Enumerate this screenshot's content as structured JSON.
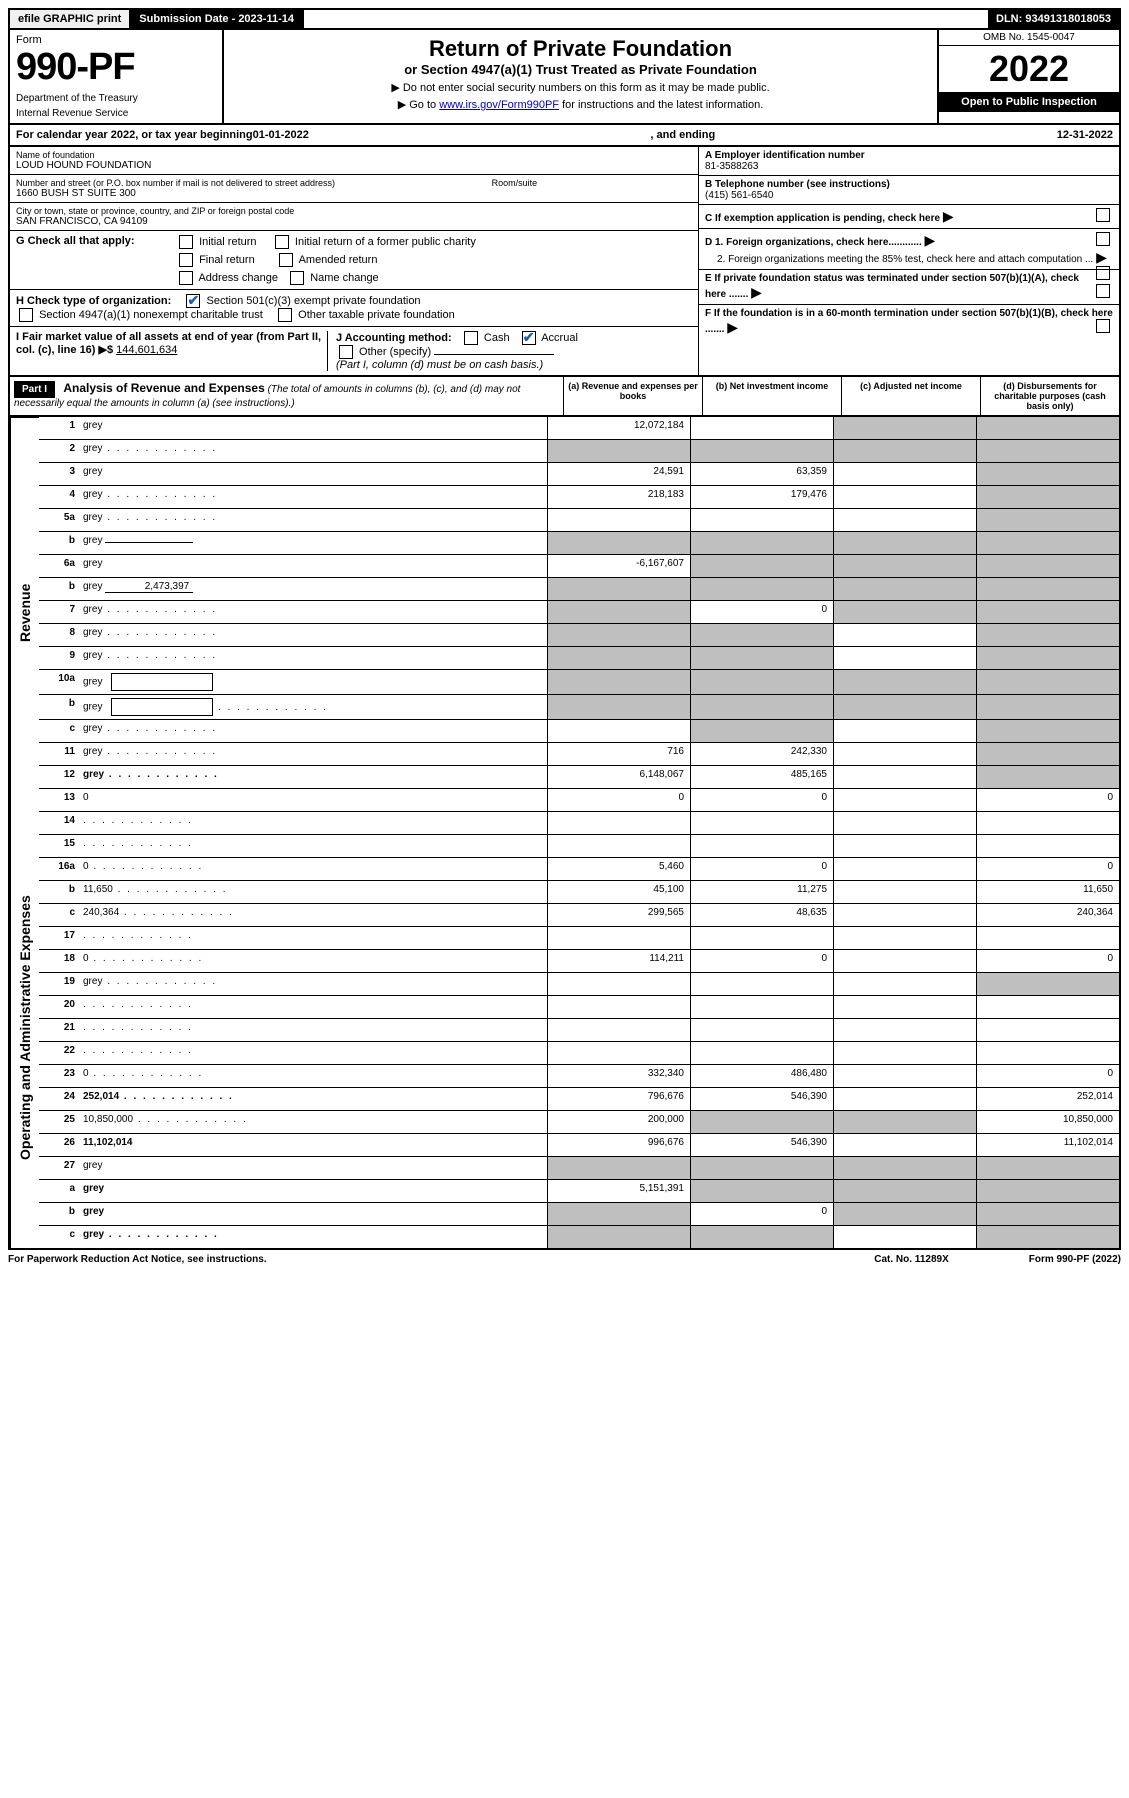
{
  "topbar": {
    "efile": "efile GRAPHIC print",
    "submission": "Submission Date - 2023-11-14",
    "dln": "DLN: 93491318018053"
  },
  "header": {
    "form_word": "Form",
    "form_num": "990-PF",
    "dept": "Department of the Treasury",
    "irs": "Internal Revenue Service",
    "title": "Return of Private Foundation",
    "subtitle": "or Section 4947(a)(1) Trust Treated as Private Foundation",
    "instr1": "▶ Do not enter social security numbers on this form as it may be made public.",
    "instr2_pre": "▶ Go to ",
    "instr2_link": "www.irs.gov/Form990PF",
    "instr2_post": " for instructions and the latest information.",
    "omb": "OMB No. 1545-0047",
    "year": "2022",
    "open": "Open to Public Inspection"
  },
  "calyear": {
    "pre": "For calendar year 2022, or tax year beginning ",
    "begin": "01-01-2022",
    "mid": ", and ending ",
    "end": "12-31-2022"
  },
  "entity": {
    "name_label": "Name of foundation",
    "name": "LOUD HOUND FOUNDATION",
    "addr_label": "Number and street (or P.O. box number if mail is not delivered to street address)",
    "addr": "1660 BUSH ST SUITE 300",
    "room_label": "Room/suite",
    "city_label": "City or town, state or province, country, and ZIP or foreign postal code",
    "city": "SAN FRANCISCO, CA  94109",
    "ein_label": "A Employer identification number",
    "ein": "81-3588263",
    "phone_label": "B Telephone number (see instructions)",
    "phone": "(415) 561-6540",
    "c_label": "C If exemption application is pending, check here",
    "d1": "D 1. Foreign organizations, check here............",
    "d2": "2. Foreign organizations meeting the 85% test, check here and attach computation ...",
    "e_label": "E If private foundation status was terminated under section 507(b)(1)(A), check here .......",
    "f_label": "F If the foundation is in a 60-month termination under section 507(b)(1)(B), check here .......",
    "g_label": "G Check all that apply:",
    "g_opts": [
      "Initial return",
      "Initial return of a former public charity",
      "Final return",
      "Amended return",
      "Address change",
      "Name change"
    ],
    "h_label": "H Check type of organization:",
    "h1": "Section 501(c)(3) exempt private foundation",
    "h2": "Section 4947(a)(1) nonexempt charitable trust",
    "h3": "Other taxable private foundation",
    "i_label": "I Fair market value of all assets at end of year (from Part II, col. (c), line 16) ▶$",
    "i_value": "144,601,634",
    "j_label": "J Accounting method:",
    "j_cash": "Cash",
    "j_accrual": "Accrual",
    "j_other": "Other (specify)",
    "j_note": "(Part I, column (d) must be on cash basis.)"
  },
  "part1": {
    "label": "Part I",
    "title": "Analysis of Revenue and Expenses",
    "title_note": "(The total of amounts in columns (b), (c), and (d) may not necessarily equal the amounts in column (a) (see instructions).)",
    "col_a": "(a) Revenue and expenses per books",
    "col_b": "(b) Net investment income",
    "col_c": "(c) Adjusted net income",
    "col_d": "(d) Disbursements for charitable purposes (cash basis only)"
  },
  "sides": {
    "revenue": "Revenue",
    "expenses": "Operating and Administrative Expenses"
  },
  "lines": [
    {
      "n": "1",
      "d": "grey",
      "a": "12,072,184",
      "b": "",
      "c": "grey"
    },
    {
      "n": "2",
      "d": "grey",
      "a": "grey",
      "b": "grey",
      "c": "grey",
      "dots": true
    },
    {
      "n": "3",
      "d": "grey",
      "a": "24,591",
      "b": "63,359",
      "c": ""
    },
    {
      "n": "4",
      "d": "grey",
      "a": "218,183",
      "b": "179,476",
      "c": "",
      "dots": true
    },
    {
      "n": "5a",
      "d": "grey",
      "a": "",
      "b": "",
      "c": "",
      "dots": true
    },
    {
      "n": "b",
      "d": "grey",
      "a": "grey",
      "b": "grey",
      "c": "grey",
      "inline": ""
    },
    {
      "n": "6a",
      "d": "grey",
      "a": "-6,167,607",
      "b": "grey",
      "c": "grey"
    },
    {
      "n": "b",
      "d": "grey",
      "a": "grey",
      "b": "grey",
      "c": "grey",
      "inline": "2,473,397"
    },
    {
      "n": "7",
      "d": "grey",
      "a": "grey",
      "b": "0",
      "c": "grey",
      "dots": true
    },
    {
      "n": "8",
      "d": "grey",
      "a": "grey",
      "b": "grey",
      "c": "",
      "dots": true
    },
    {
      "n": "9",
      "d": "grey",
      "a": "grey",
      "b": "grey",
      "c": "",
      "dots": true
    },
    {
      "n": "10a",
      "d": "grey",
      "a": "grey",
      "b": "grey",
      "c": "grey",
      "box": true
    },
    {
      "n": "b",
      "d": "grey",
      "a": "grey",
      "b": "grey",
      "c": "grey",
      "box": true,
      "dots": true
    },
    {
      "n": "c",
      "d": "grey",
      "a": "",
      "b": "grey",
      "c": "",
      "dots": true
    },
    {
      "n": "11",
      "d": "grey",
      "a": "716",
      "b": "242,330",
      "c": "",
      "dots": true
    },
    {
      "n": "12",
      "d": "grey",
      "a": "6,148,067",
      "b": "485,165",
      "c": "",
      "bold": true,
      "dots": true
    }
  ],
  "exp_lines": [
    {
      "n": "13",
      "d": "0",
      "a": "0",
      "b": "0",
      "c": ""
    },
    {
      "n": "14",
      "d": "",
      "a": "",
      "b": "",
      "c": "",
      "dots": true
    },
    {
      "n": "15",
      "d": "",
      "a": "",
      "b": "",
      "c": "",
      "dots": true
    },
    {
      "n": "16a",
      "d": "0",
      "a": "5,460",
      "b": "0",
      "c": "",
      "dots": true
    },
    {
      "n": "b",
      "d": "11,650",
      "a": "45,100",
      "b": "11,275",
      "c": "",
      "dots": true
    },
    {
      "n": "c",
      "d": "240,364",
      "a": "299,565",
      "b": "48,635",
      "c": "",
      "dots": true
    },
    {
      "n": "17",
      "d": "",
      "a": "",
      "b": "",
      "c": "",
      "dots": true
    },
    {
      "n": "18",
      "d": "0",
      "a": "114,211",
      "b": "0",
      "c": "",
      "dots": true
    },
    {
      "n": "19",
      "d": "grey",
      "a": "",
      "b": "",
      "c": "",
      "dots": true
    },
    {
      "n": "20",
      "d": "",
      "a": "",
      "b": "",
      "c": "",
      "dots": true
    },
    {
      "n": "21",
      "d": "",
      "a": "",
      "b": "",
      "c": "",
      "dots": true
    },
    {
      "n": "22",
      "d": "",
      "a": "",
      "b": "",
      "c": "",
      "dots": true
    },
    {
      "n": "23",
      "d": "0",
      "a": "332,340",
      "b": "486,480",
      "c": "",
      "dots": true
    },
    {
      "n": "24",
      "d": "252,014",
      "a": "796,676",
      "b": "546,390",
      "c": "",
      "bold": true,
      "dots": true
    },
    {
      "n": "25",
      "d": "10,850,000",
      "a": "200,000",
      "b": "grey",
      "c": "grey",
      "dots": true
    },
    {
      "n": "26",
      "d": "11,102,014",
      "a": "996,676",
      "b": "546,390",
      "c": "",
      "bold": true
    },
    {
      "n": "27",
      "d": "grey",
      "a": "grey",
      "b": "grey",
      "c": "grey"
    },
    {
      "n": "a",
      "d": "grey",
      "a": "5,151,391",
      "b": "grey",
      "c": "grey",
      "bold": true
    },
    {
      "n": "b",
      "d": "grey",
      "a": "grey",
      "b": "0",
      "c": "grey",
      "bold": true
    },
    {
      "n": "c",
      "d": "grey",
      "a": "grey",
      "b": "grey",
      "c": "",
      "bold": true,
      "dots": true
    }
  ],
  "footer": {
    "left": "For Paperwork Reduction Act Notice, see instructions.",
    "mid": "Cat. No. 11289X",
    "right": "Form 990-PF (2022)"
  }
}
